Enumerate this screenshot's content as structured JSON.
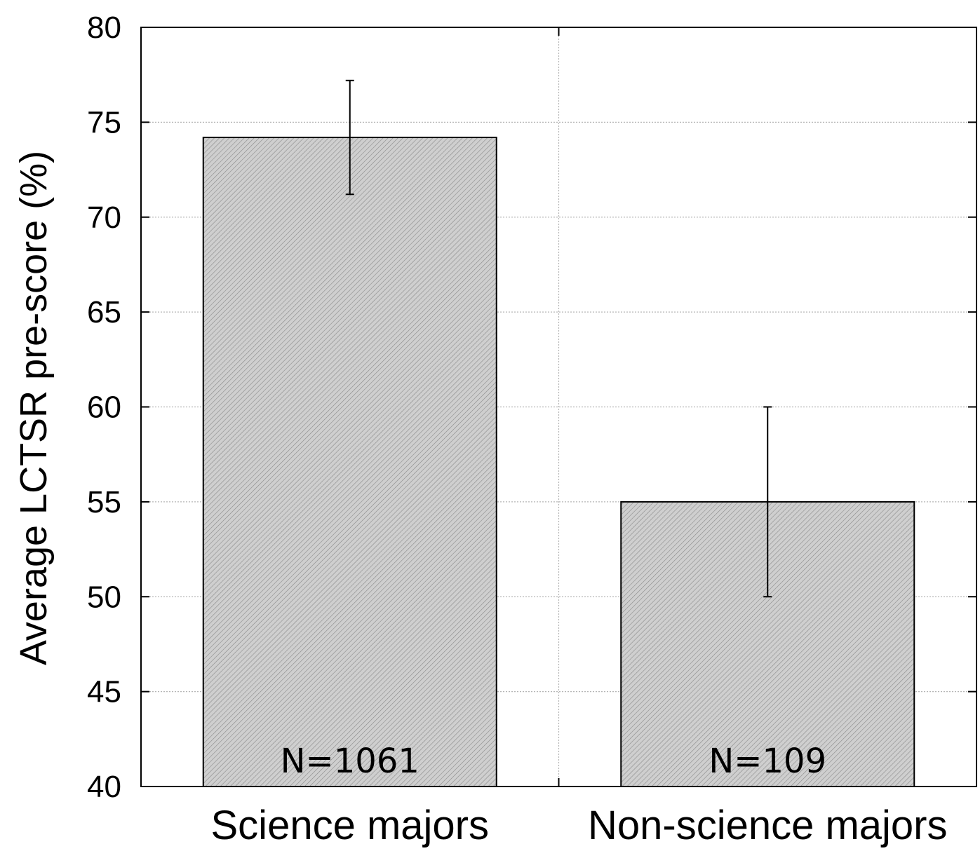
{
  "chart_data": {
    "type": "bar",
    "title": "",
    "xlabel": "",
    "ylabel": "Average LCTSR pre-score (%)",
    "categories": [
      "Science majors",
      "Non-science majors"
    ],
    "values": [
      74.2,
      55.0
    ],
    "error_low": [
      71.2,
      50.0
    ],
    "error_high": [
      77.2,
      60.0
    ],
    "data_labels": [
      "N=1061",
      "N=109"
    ],
    "ylim": [
      40,
      80
    ],
    "yticks": [
      40,
      45,
      50,
      55,
      60,
      65,
      70,
      75,
      80
    ],
    "grid": true,
    "bar_color": "#c8c8c8",
    "legend": "none"
  }
}
